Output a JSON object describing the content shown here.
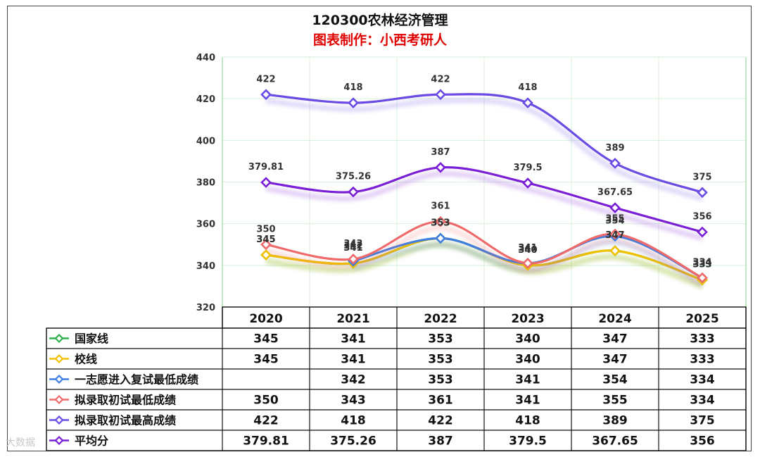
{
  "title": "120300农林经济管理",
  "subtitle": "图表制作：小西考研人",
  "watermark": "大数据",
  "chart_data": {
    "type": "line",
    "x": [
      "2020",
      "2021",
      "2022",
      "2023",
      "2024",
      "2025"
    ],
    "ylim": [
      320,
      440
    ],
    "yticks": [
      320,
      340,
      360,
      380,
      400,
      420,
      440
    ],
    "grid": true,
    "legend": "table-bottom",
    "series": [
      {
        "name": "国家线",
        "values": [
          345,
          341,
          353,
          340,
          347,
          333
        ],
        "color": "#2fb04d"
      },
      {
        "name": "校线",
        "values": [
          345,
          341,
          353,
          340,
          347,
          333
        ],
        "color": "#f2c200"
      },
      {
        "name": "一志愿进入复试最低成绩",
        "values": [
          null,
          342,
          353,
          341,
          354,
          334
        ],
        "color": "#3f7fe0"
      },
      {
        "name": "拟录取初试最低成绩",
        "values": [
          350,
          343,
          361,
          341,
          355,
          334
        ],
        "color": "#ef6a6a"
      },
      {
        "name": "拟录取初试最高成绩",
        "values": [
          422,
          418,
          422,
          418,
          389,
          375
        ],
        "color": "#6a4be3"
      },
      {
        "name": "平均分",
        "values": [
          379.81,
          375.26,
          387,
          379.5,
          367.65,
          356
        ],
        "color": "#7a1fd6"
      }
    ],
    "table_text": [
      [
        "345",
        "341",
        "353",
        "340",
        "347",
        "333"
      ],
      [
        "345",
        "341",
        "353",
        "340",
        "347",
        "333"
      ],
      [
        "",
        "342",
        "353",
        "341",
        "354",
        "334"
      ],
      [
        "350",
        "343",
        "361",
        "341",
        "355",
        "334"
      ],
      [
        "422",
        "418",
        "422",
        "418",
        "389",
        "375"
      ],
      [
        "379.81",
        "375.26",
        "387",
        "379.5",
        "367.65",
        "356"
      ]
    ]
  }
}
